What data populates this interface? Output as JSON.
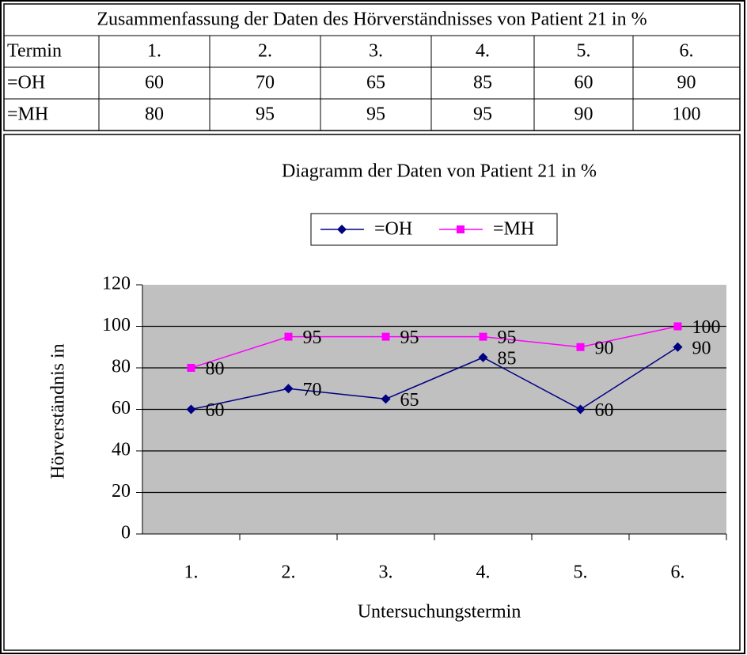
{
  "table": {
    "title": "Zusammenfassung der Daten des Hörverständnisses von Patient 21 in %",
    "header": [
      "Termin",
      "1.",
      "2.",
      "3.",
      "4.",
      "5.",
      "6."
    ],
    "rows": [
      [
        "=OH",
        60,
        70,
        65,
        85,
        60,
        90
      ],
      [
        "=MH",
        80,
        95,
        95,
        95,
        90,
        100
      ]
    ]
  },
  "chart_data": {
    "type": "line",
    "title": "Diagramm der Daten von Patient 21 in %",
    "x_label": "Untersuchungstermin",
    "y_label": "Hörverständnis in",
    "categories": [
      "1.",
      "2.",
      "3.",
      "4.",
      "5.",
      "6."
    ],
    "series": [
      {
        "name": "=OH",
        "color": "#000080",
        "marker": "diamond",
        "values": [
          60,
          70,
          65,
          85,
          60,
          90
        ]
      },
      {
        "name": "=MH",
        "color": "#ff00ff",
        "marker": "square",
        "values": [
          80,
          95,
          95,
          95,
          90,
          100
        ]
      }
    ],
    "ylim": [
      0,
      120
    ],
    "yticks": [
      0,
      20,
      40,
      60,
      80,
      100,
      120
    ],
    "grid": true,
    "legend": "top"
  }
}
